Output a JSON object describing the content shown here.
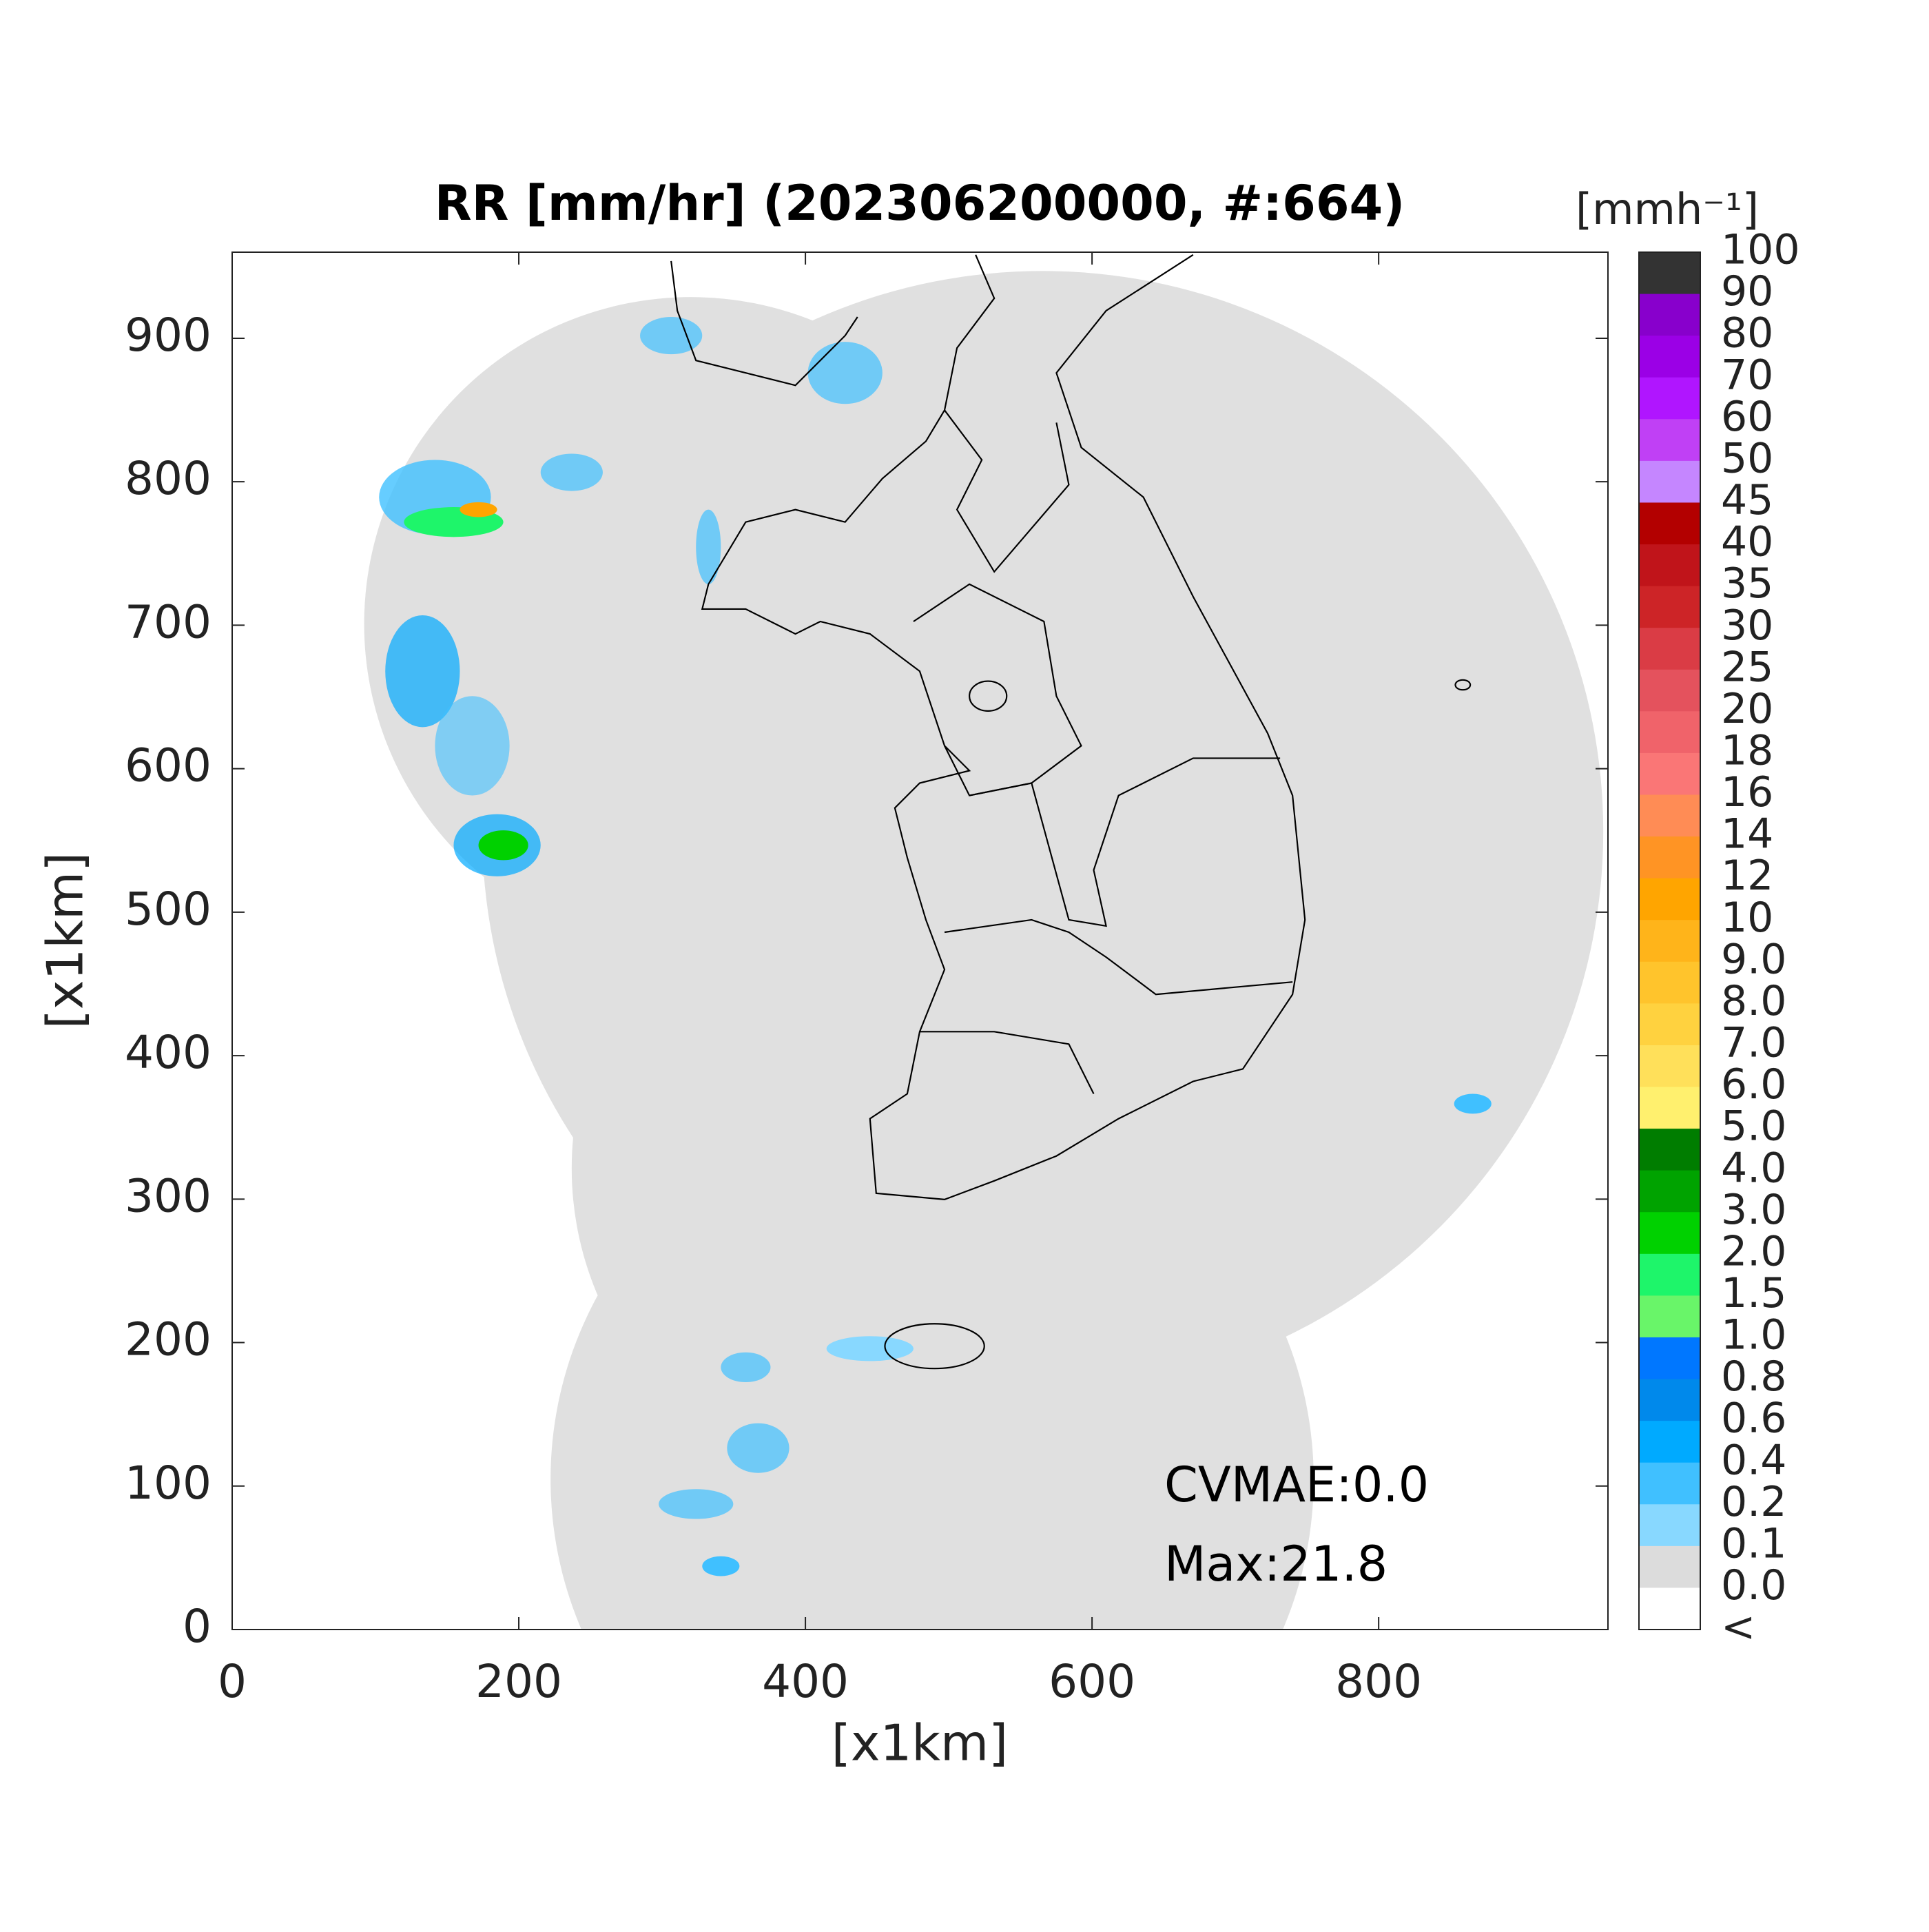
{
  "chart_data": {
    "type": "radar-map",
    "title": "RR [mm/hr] (202306200000, #:664)",
    "xlabel": "[x1km]",
    "ylabel": "[x1km]",
    "xlim": [
      0,
      960
    ],
    "ylim": [
      0,
      960
    ],
    "xticks": [
      0,
      200,
      400,
      600,
      800
    ],
    "yticks": [
      0,
      100,
      200,
      300,
      400,
      500,
      600,
      700,
      800,
      900
    ],
    "annotations": [
      "CVMAE:0.0",
      "Max:21.8"
    ],
    "colorbar": {
      "label": "[mmh⁻¹]",
      "levels": [
        100,
        90,
        80,
        70,
        60,
        50,
        45,
        40,
        35,
        30,
        25,
        20,
        18,
        16,
        14,
        12,
        10,
        {
          "value": 9,
          "label": "9.0"
        },
        {
          "value": 8,
          "label": "8.0"
        },
        {
          "value": 7,
          "label": "7.0"
        },
        {
          "value": 6,
          "label": "6.0"
        },
        {
          "value": 5,
          "label": "5.0"
        },
        {
          "value": 4,
          "label": "4.0"
        },
        {
          "value": 3,
          "label": "3.0"
        },
        {
          "value": 2,
          "label": "2.0"
        },
        1.5,
        {
          "value": 1,
          "label": "1.0"
        },
        0.8,
        0.6,
        0.4,
        0.2,
        0.1,
        {
          "value": 0,
          "label": "0.0"
        }
      ],
      "underflow_label": "<",
      "colors": [
        "#333333",
        "#8800cc",
        "#9b00e6",
        "#b015ff",
        "#c040f5",
        "#c586ff",
        "#b30000",
        "#c0141a",
        "#cd2427",
        "#da3c45",
        "#e4525d",
        "#f0636a",
        "#fa7676",
        "#ff8c55",
        "#ff9424",
        "#ffa500",
        "#ffb41a",
        "#ffc42c",
        "#ffd23f",
        "#ffe05a",
        "#fff06e",
        "#007d00",
        "#00a300",
        "#00d100",
        "#1ef56a",
        "#69f569",
        "#0077ff",
        "#0089eb",
        "#00aaff",
        "#40c0ff",
        "#88d8ff",
        "#dcdcdc",
        "#ffffff"
      ]
    }
  }
}
